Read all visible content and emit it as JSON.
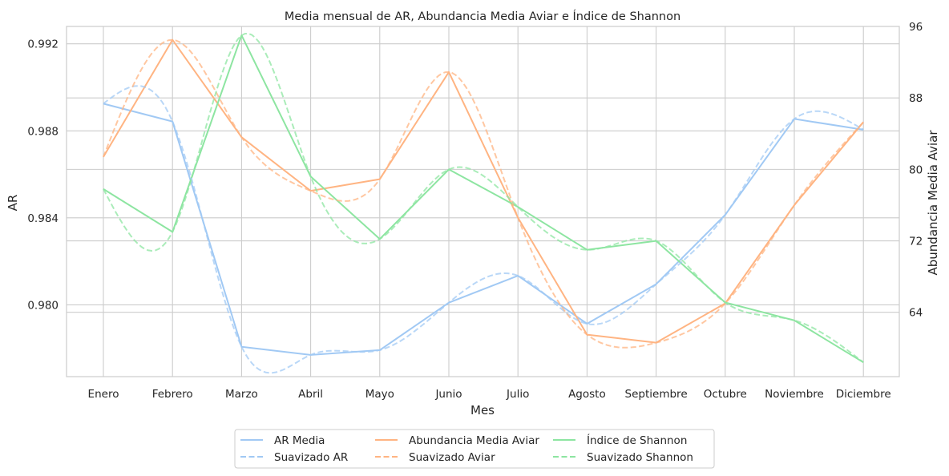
{
  "chart_data": {
    "type": "line",
    "title": "Media mensual de AR, Abundancia Media Aviar e Índice de Shannon",
    "xlabel": "Mes",
    "ylabel_left": "AR",
    "ylabel_right": "Abundancia Media Aviar",
    "categories": [
      "Enero",
      "Febrero",
      "Marzo",
      "Abril",
      "Mayo",
      "Junio",
      "Julio",
      "Agosto",
      "Septiembre",
      "Octubre",
      "Noviembre",
      "Diciembre"
    ],
    "y_left": {
      "lim": [
        0.9767,
        0.9928
      ],
      "ticks": [
        0.98,
        0.984,
        0.988,
        0.992
      ],
      "tick_labels": [
        "0.980",
        "0.984",
        "0.988",
        "0.992"
      ]
    },
    "y_right": {
      "lim": [
        56.8,
        96
      ],
      "ticks": [
        64,
        72,
        80,
        88,
        96
      ],
      "tick_labels": [
        "64",
        "72",
        "80",
        "88",
        "96"
      ]
    },
    "grid": true,
    "legend_position": "bottom-center",
    "series": [
      {
        "name": "AR Media",
        "axis": "left",
        "style": "solid",
        "color": "#a1c9f4",
        "values": [
          0.98925,
          0.98843,
          0.97807,
          0.9777,
          0.97792,
          0.9801,
          0.98134,
          0.97913,
          0.98095,
          0.98414,
          0.98855,
          0.98805
        ]
      },
      {
        "name": "Abundancia Media Aviar",
        "axis": "right",
        "style": "solid",
        "color": "#ffb482",
        "values": [
          81.4,
          94.5,
          83.6,
          77.6,
          78.9,
          90.9,
          74.6,
          61.5,
          60.6,
          65.0,
          76.0,
          85.3
        ]
      },
      {
        "name": "Índice de Shannon",
        "axis": "right",
        "style": "solid",
        "color": "#8de5a1",
        "values": [
          77.8,
          73.0,
          95.0,
          79.2,
          72.2,
          80.0,
          75.8,
          71.0,
          72.0,
          65.1,
          63.1,
          58.4
        ]
      },
      {
        "name": "Suavizado AR",
        "axis": "left",
        "style": "dashed",
        "color": "#a1c9f4",
        "smooth_of": "AR Media"
      },
      {
        "name": "Suavizado Aviar",
        "axis": "right",
        "style": "dashed",
        "color": "#ffb482",
        "smooth_of": "Abundancia Media Aviar"
      },
      {
        "name": "Suavizado Shannon",
        "axis": "right",
        "style": "dashed",
        "color": "#8de5a1",
        "smooth_of": "Índice de Shannon"
      }
    ]
  }
}
